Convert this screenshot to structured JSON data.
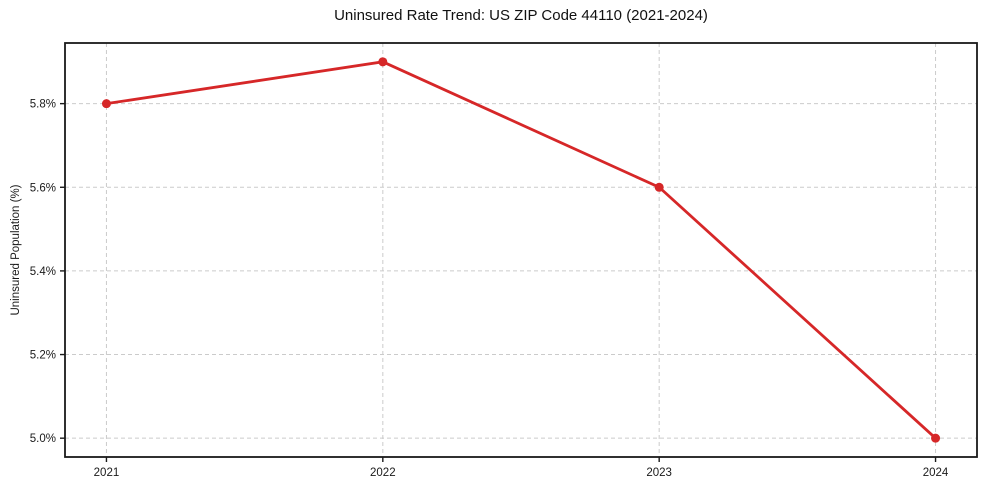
{
  "chart_data": {
    "type": "line",
    "title": "Uninsured Rate Trend: US ZIP Code 44110 (2021-2024)",
    "xlabel": "",
    "ylabel": "Uninsured Population (%)",
    "x": [
      2021,
      2022,
      2023,
      2024
    ],
    "series": [
      {
        "name": "uninsured-rate",
        "values": [
          5.8,
          5.9,
          5.6,
          5.0
        ],
        "color": "#d62728"
      }
    ],
    "xticks": [
      2021,
      2022,
      2023,
      2024
    ],
    "xtick_labels": [
      "2021",
      "2022",
      "2023",
      "2024"
    ],
    "yticks": [
      5.0,
      5.2,
      5.4,
      5.6,
      5.8
    ],
    "ytick_labels": [
      "5.0%",
      "5.2%",
      "5.4%",
      "5.6%",
      "5.8%"
    ],
    "xlim": [
      2020.85,
      2024.15
    ],
    "ylim": [
      4.955,
      5.945
    ],
    "grid": true,
    "grid_style": "dashed",
    "grid_color": "#cbcbcb",
    "frame_color": "#1a1a1a",
    "marker": "circle",
    "line_width": 2.8,
    "marker_radius": 4.5,
    "legend": "none"
  }
}
